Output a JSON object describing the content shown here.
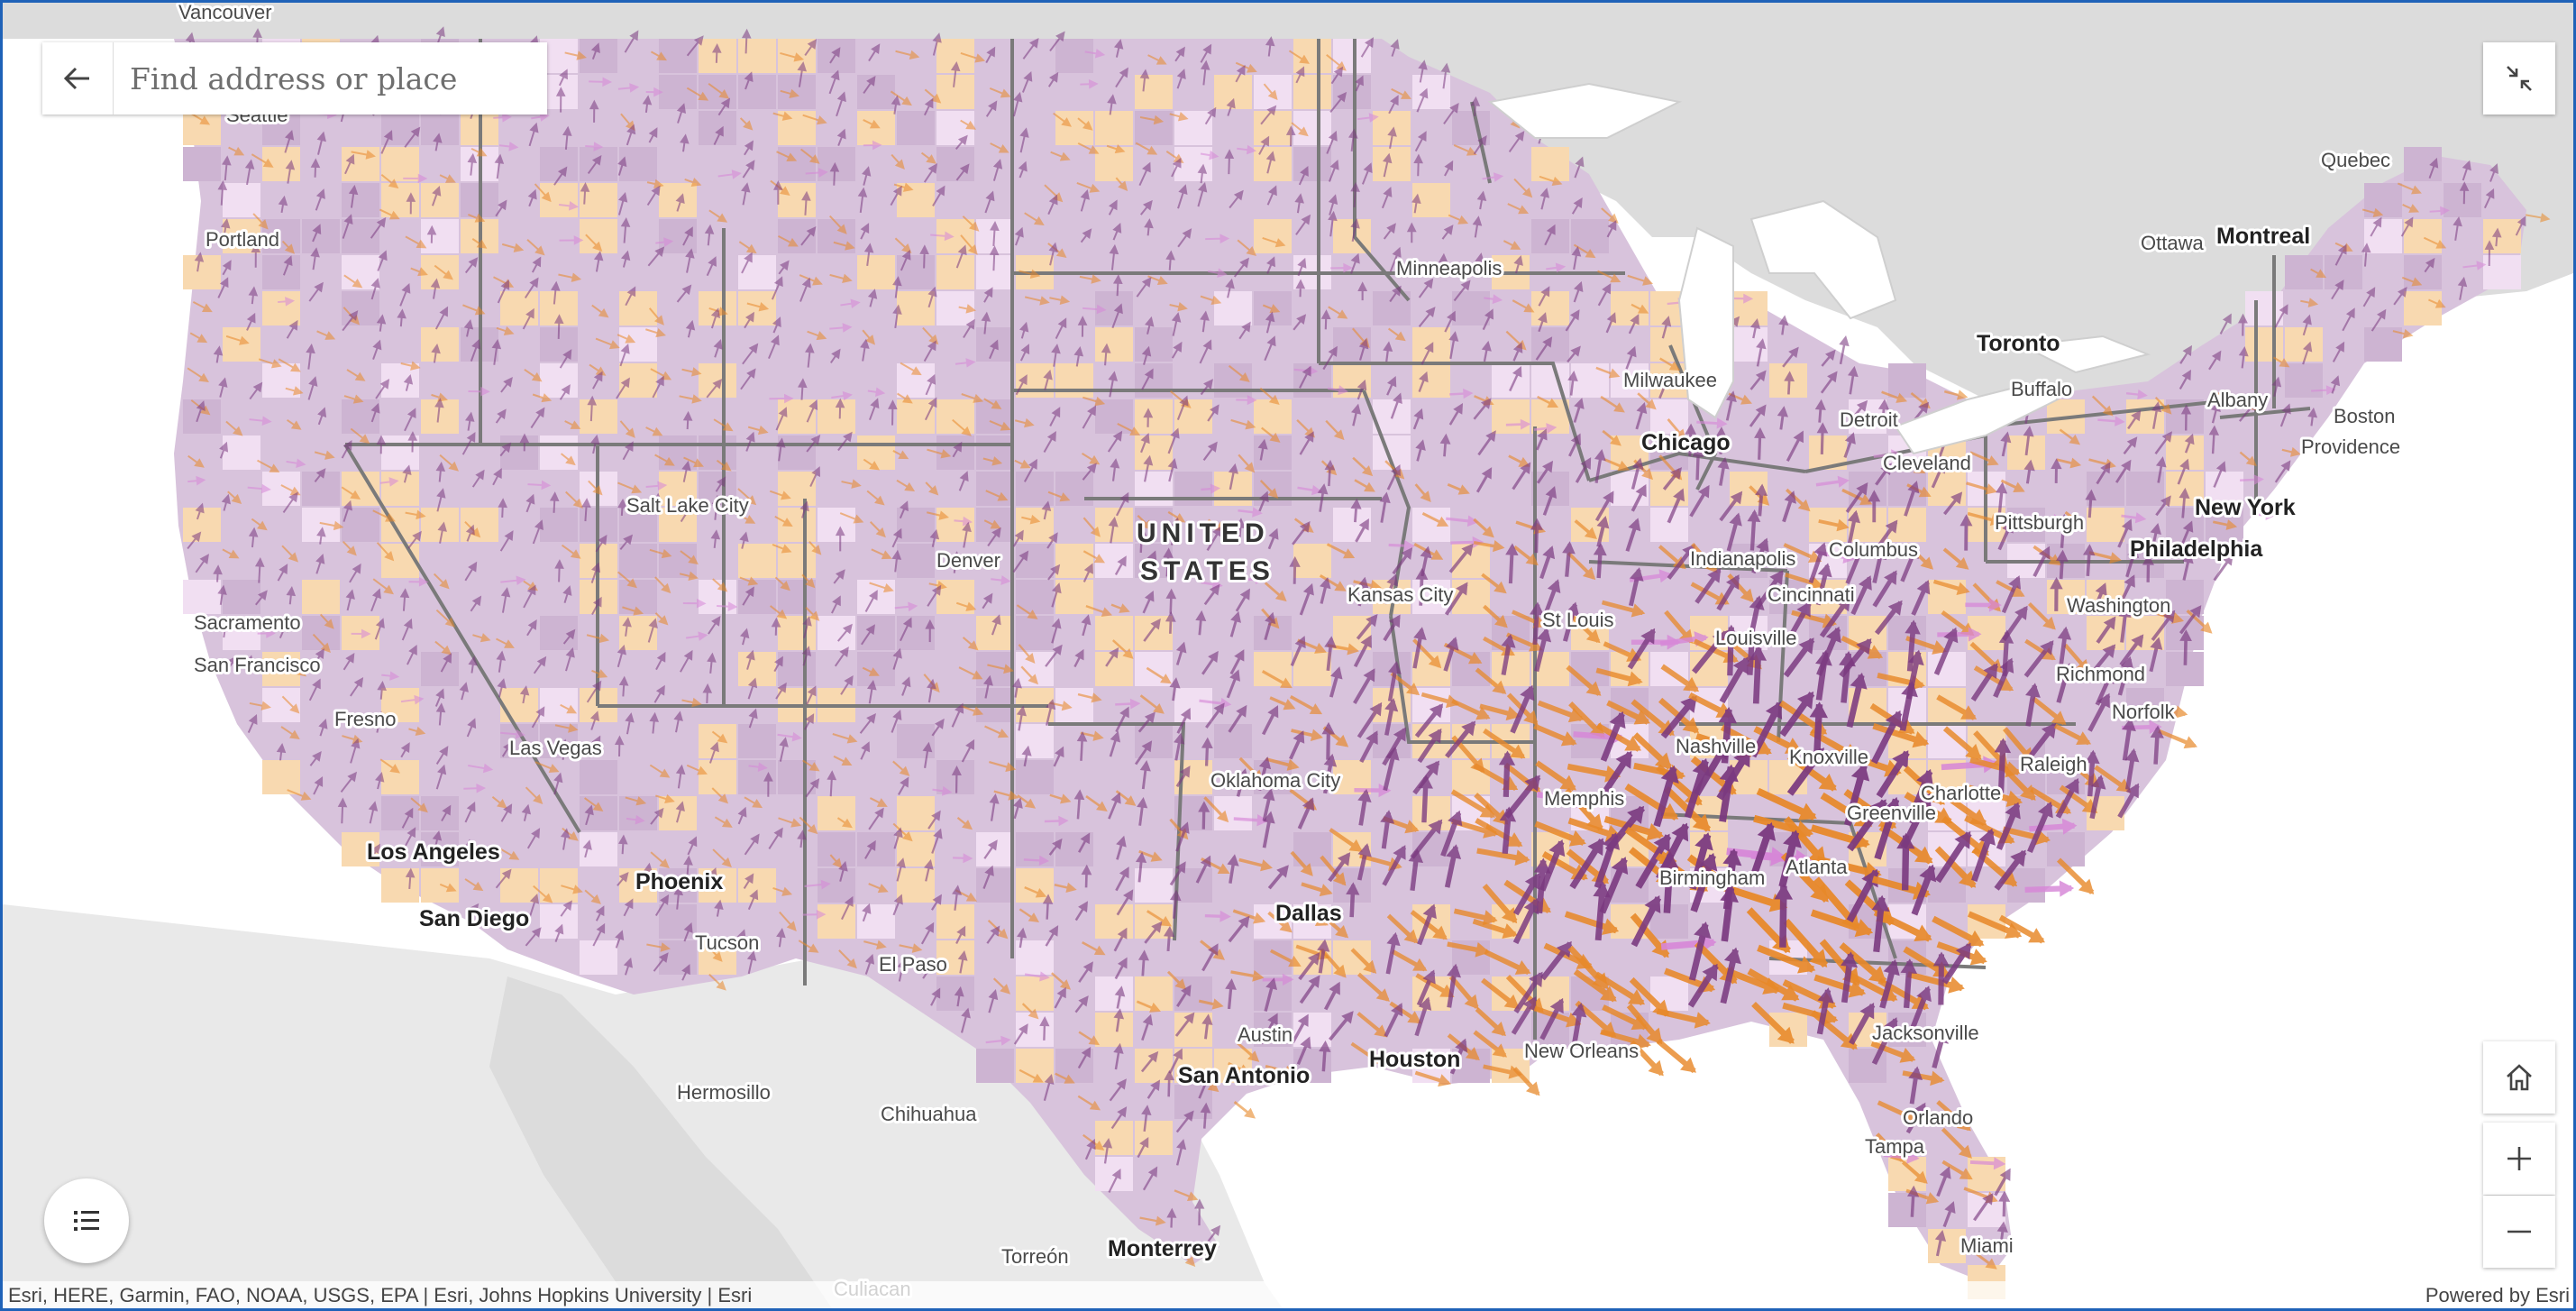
{
  "search": {
    "placeholder": "Find address or place"
  },
  "attribution": {
    "text": "Esri, HERE, Garmin, FAO, NOAA, USGS, EPA | Esri, Johns Hopkins University | Esri",
    "powered_by": "Powered by Esri"
  },
  "map": {
    "country_label_line1": "UNITED",
    "country_label_line2": "STATES",
    "colors": {
      "water": "#ffffff",
      "land": "#dcdcdc",
      "foreign_land": "#e9e9e9",
      "county_fill": "#d8c3dc",
      "county_fill_light": "#f1dff2",
      "county_fill_orange": "#f8d9b0",
      "arrow_purple": "#7b3a80",
      "arrow_orange": "#e8892a",
      "arrow_pink": "#d787d8",
      "state_border": "#7a7a7a"
    },
    "cities": [
      {
        "name": "Vancouver",
        "major": false
      },
      {
        "name": "Seattle",
        "major": false
      },
      {
        "name": "Portland",
        "major": false
      },
      {
        "name": "Sacramento",
        "major": false
      },
      {
        "name": "San Francisco",
        "major": false
      },
      {
        "name": "Fresno",
        "major": false
      },
      {
        "name": "Los Angeles",
        "major": true
      },
      {
        "name": "San Diego",
        "major": true
      },
      {
        "name": "Las Vegas",
        "major": false
      },
      {
        "name": "Phoenix",
        "major": true
      },
      {
        "name": "Tucson",
        "major": false
      },
      {
        "name": "Salt Lake City",
        "major": false
      },
      {
        "name": "Denver",
        "major": false
      },
      {
        "name": "El Paso",
        "major": false
      },
      {
        "name": "Hermosillo",
        "major": false
      },
      {
        "name": "Chihuahua",
        "major": false
      },
      {
        "name": "Torreón",
        "major": false
      },
      {
        "name": "Monterrey",
        "major": true
      },
      {
        "name": "Culiacan",
        "major": false
      },
      {
        "name": "Minneapolis",
        "major": false
      },
      {
        "name": "Milwaukee",
        "major": false
      },
      {
        "name": "Chicago",
        "major": true
      },
      {
        "name": "Detroit",
        "major": false
      },
      {
        "name": "Kansas City",
        "major": false
      },
      {
        "name": "St Louis",
        "major": false
      },
      {
        "name": "Indianapolis",
        "major": false
      },
      {
        "name": "Columbus",
        "major": false
      },
      {
        "name": "Cincinnati",
        "major": false
      },
      {
        "name": "Louisville",
        "major": false
      },
      {
        "name": "Cleveland",
        "major": false
      },
      {
        "name": "Pittsburgh",
        "major": false
      },
      {
        "name": "Oklahoma City",
        "major": false
      },
      {
        "name": "Dallas",
        "major": true
      },
      {
        "name": "Austin",
        "major": false
      },
      {
        "name": "San Antonio",
        "major": true
      },
      {
        "name": "Houston",
        "major": true
      },
      {
        "name": "New Orleans",
        "major": false
      },
      {
        "name": "Memphis",
        "major": false
      },
      {
        "name": "Nashville",
        "major": false
      },
      {
        "name": "Knoxville",
        "major": false
      },
      {
        "name": "Birmingham",
        "major": false
      },
      {
        "name": "Atlanta",
        "major": false
      },
      {
        "name": "Greenville",
        "major": false
      },
      {
        "name": "Charlotte",
        "major": false
      },
      {
        "name": "Raleigh",
        "major": false
      },
      {
        "name": "Norfolk",
        "major": false
      },
      {
        "name": "Richmond",
        "major": false
      },
      {
        "name": "Washington",
        "major": false
      },
      {
        "name": "Philadelphia",
        "major": true
      },
      {
        "name": "New York",
        "major": true
      },
      {
        "name": "Providence",
        "major": false
      },
      {
        "name": "Boston",
        "major": false
      },
      {
        "name": "Albany",
        "major": false
      },
      {
        "name": "Buffalo",
        "major": false
      },
      {
        "name": "Toronto",
        "major": true
      },
      {
        "name": "Ottawa",
        "major": false
      },
      {
        "name": "Montreal",
        "major": true
      },
      {
        "name": "Quebec",
        "major": false
      },
      {
        "name": "Jacksonville",
        "major": false
      },
      {
        "name": "Orlando",
        "major": false
      },
      {
        "name": "Tampa",
        "major": false
      },
      {
        "name": "Miami",
        "major": false
      }
    ]
  }
}
